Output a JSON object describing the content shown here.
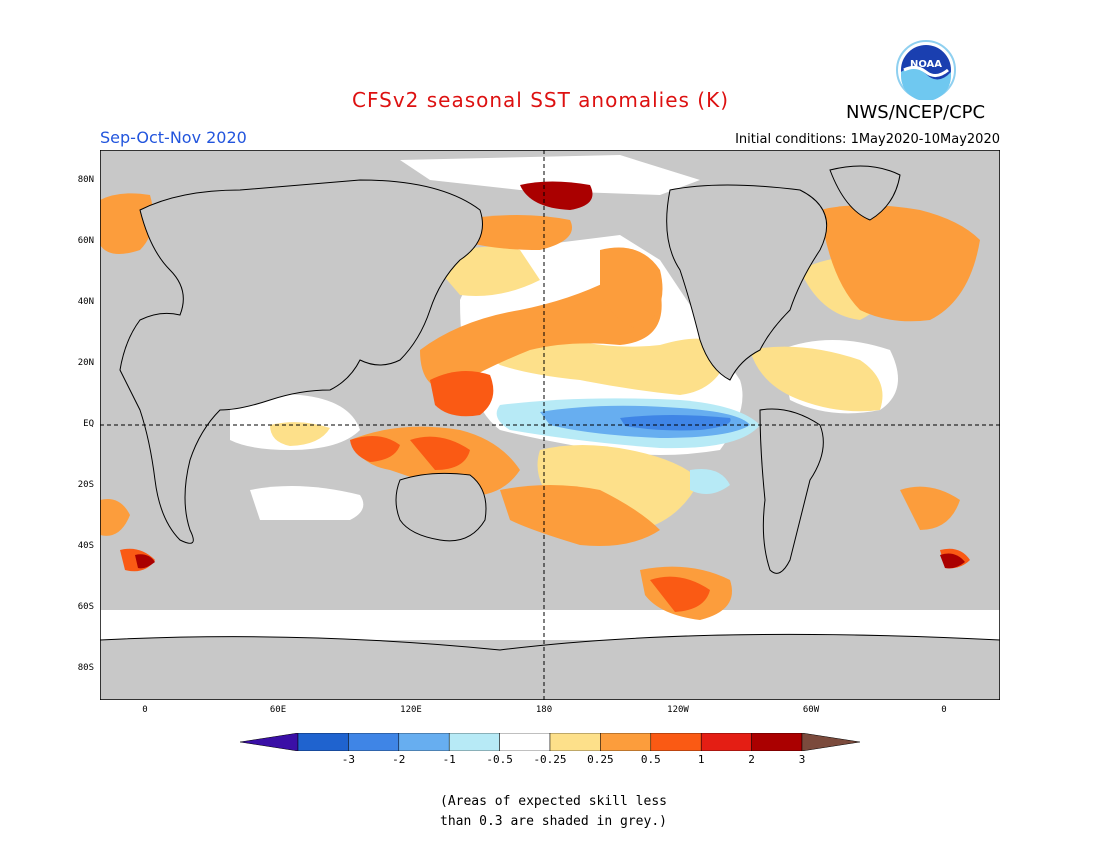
{
  "title": "CFSv2 seasonal SST anomalies (K)",
  "agency": "NWS/NCEP/CPC",
  "logo_text": "NOAA",
  "season": "Sep-Oct-Nov 2020",
  "initial_conditions": "Initial conditions:  1May2020-10May2020",
  "map": {
    "lat_labels": [
      "80N",
      "60N",
      "40N",
      "20N",
      "EQ",
      "20S",
      "40S",
      "60S",
      "80S"
    ],
    "lon_labels": [
      "0",
      "60E",
      "120E",
      "180",
      "120W",
      "60W",
      "0"
    ],
    "lat_range": [
      -90,
      90
    ],
    "lon_range": [
      -20,
      385
    ],
    "grey_fill": "#c8c8c8",
    "anomalies": [
      {
        "region": "Western Pacific warm pool",
        "level": "1-2"
      },
      {
        "region": "Maritime continent",
        "level": "1-2"
      },
      {
        "region": "North Pacific (Kuroshio extension)",
        "level": "0.5-1"
      },
      {
        "region": "Bering Sea / Arctic north of Siberia",
        "level": "2-3"
      },
      {
        "region": "Equatorial central-eastern Pacific (La Niña)",
        "level": "-1 to -0.5"
      },
      {
        "region": "Southeast Pacific (South of 50S)",
        "level": "1-2"
      },
      {
        "region": "North Atlantic",
        "level": "0.5-1"
      },
      {
        "region": "South Atlantic off South Africa",
        "level": "2-3"
      }
    ]
  },
  "colorbar": {
    "labels": [
      "-3",
      "-2",
      "-1",
      "-0.5",
      "-0.25",
      "0.25",
      "0.5",
      "1",
      "2",
      "3"
    ],
    "colors": [
      "#3a0fa6",
      "#1f63cf",
      "#3f85e6",
      "#67aef0",
      "#b7eaf6",
      "#ffffff",
      "#fde08a",
      "#fc9d3c",
      "#fa5a14",
      "#e41e14",
      "#aa0000",
      "#7b4a3c"
    ]
  },
  "note_line1": "(Areas of expected skill less",
  "note_line2": "than 0.3 are shaded in grey.)"
}
